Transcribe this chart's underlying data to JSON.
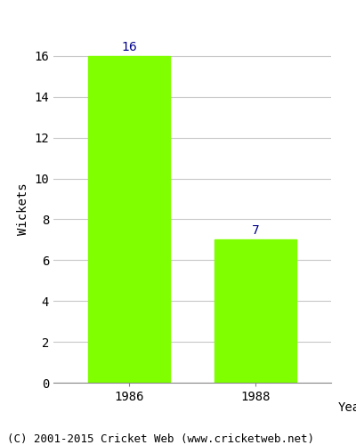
{
  "categories": [
    "1986",
    "1988"
  ],
  "values": [
    16,
    7
  ],
  "bar_color": "#7fff00",
  "bar_edgecolor": "#7fff00",
  "xlabel": "Year",
  "ylabel": "Wickets",
  "ylim": [
    0,
    17.0
  ],
  "yticks": [
    0,
    2,
    4,
    6,
    8,
    10,
    12,
    14,
    16
  ],
  "label_color": "#00008b",
  "label_fontsize": 10,
  "axis_label_fontsize": 10,
  "tick_fontsize": 10,
  "grid_color": "#c8c8c8",
  "background_color": "#ffffff",
  "footer_text": "(C) 2001-2015 Cricket Web (www.cricketweb.net)",
  "footer_fontsize": 9,
  "bar_width": 0.65
}
